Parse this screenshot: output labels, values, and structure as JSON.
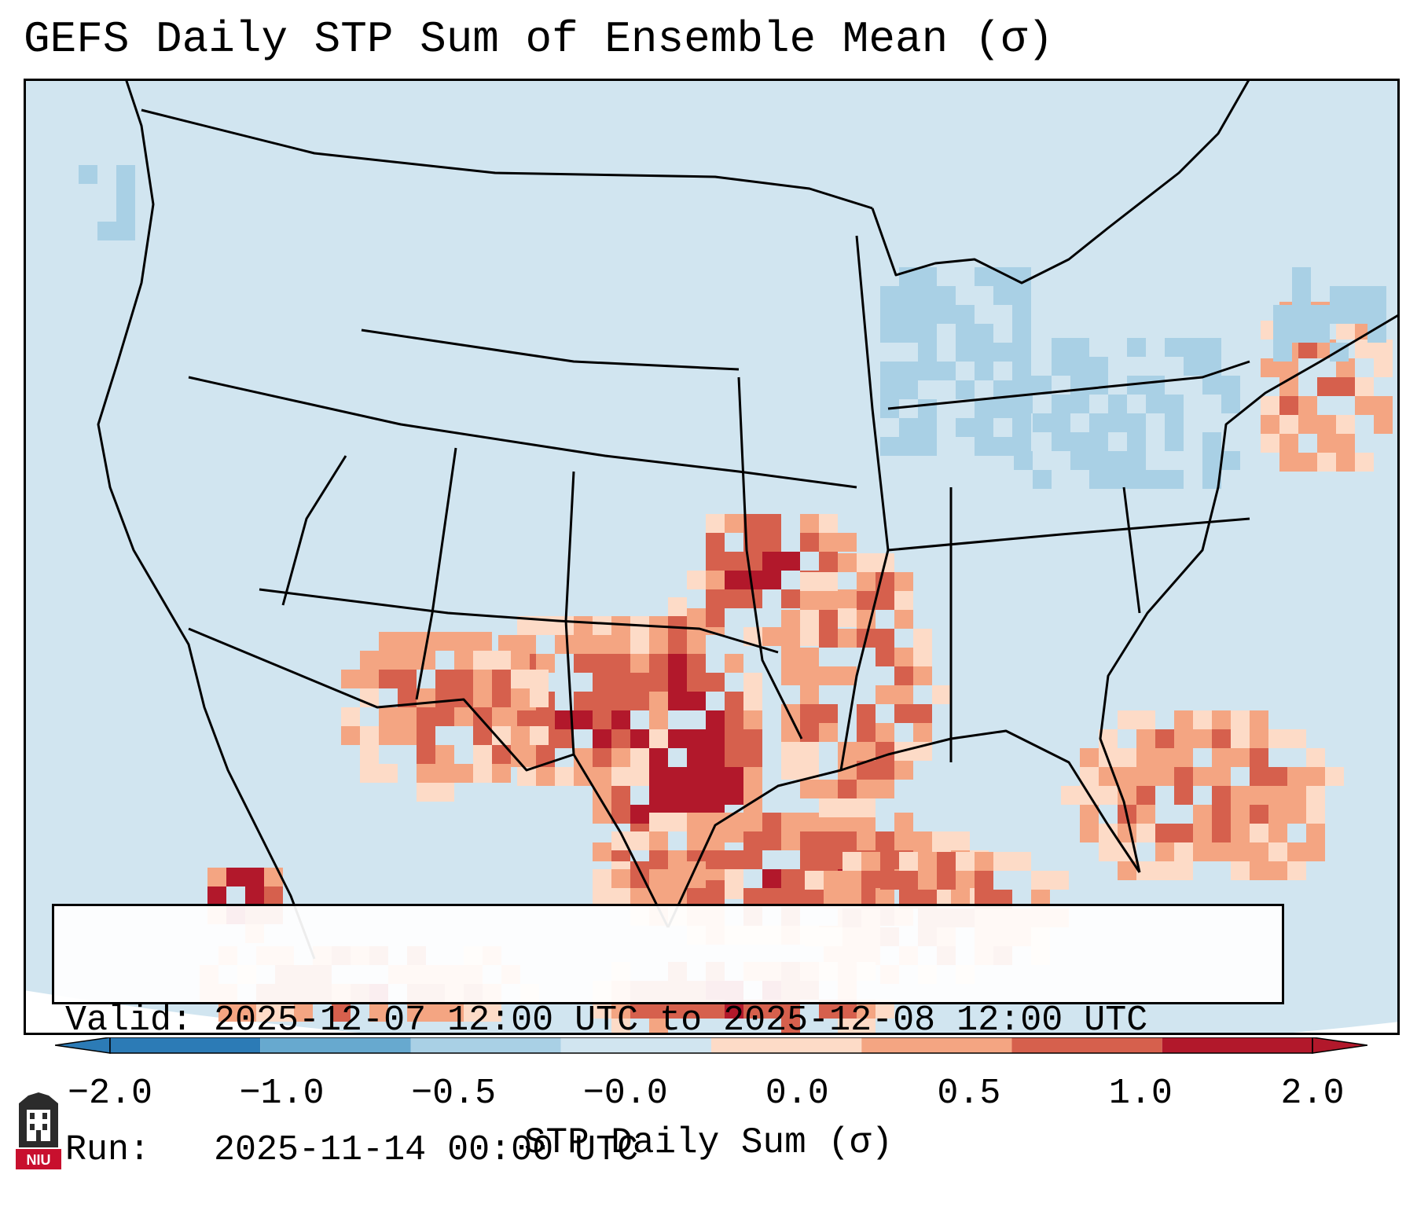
{
  "title": "GEFS Daily STP Sum of Ensemble Mean (σ)",
  "info": {
    "valid_line": "Valid: 2025-12-07 12:00 UTC to 2025-12-08 12:00 UTC",
    "run_line": "Run:   2025-11-14 00:00 UTC"
  },
  "colorbar": {
    "label": "STP Daily Sum (σ)",
    "ticks": [
      "−2.0",
      "−1.0",
      "−0.5",
      "−0.0",
      "0.0",
      "0.5",
      "1.0",
      "2.0"
    ],
    "colors": [
      "#2c7bb6",
      "#67a9cf",
      "#a9d0e5",
      "#d1e5f0",
      "#fddbc7",
      "#f4a582",
      "#d6604d",
      "#b2182b"
    ]
  },
  "map": {
    "background_color": "#d1e5f0",
    "projection": "Lambert Conformal Conic",
    "region": "CONUS"
  },
  "logo_text": "NIU"
}
